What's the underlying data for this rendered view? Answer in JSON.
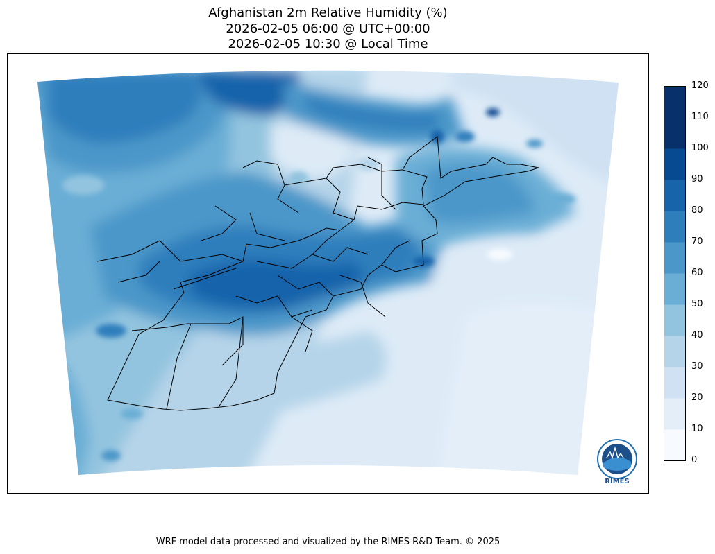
{
  "title": {
    "line1": "Afghanistan 2m Relative Humidity (%)",
    "line2": "2026-02-05 06:00 @ UTC+00:00",
    "line3": "2026-02-05 10:30 @ Local Time"
  },
  "colorbar": {
    "ticks": [
      "0",
      "10",
      "20",
      "30",
      "40",
      "50",
      "60",
      "70",
      "80",
      "90",
      "100",
      "110",
      "120"
    ],
    "colors": [
      "#f7fbff",
      "#e3eef9",
      "#cfe1f2",
      "#b5d4e9",
      "#93c4df",
      "#6aaed6",
      "#4b97c9",
      "#2e7ebc",
      "#1764ab",
      "#084a91",
      "#08306b",
      "#08306b"
    ]
  },
  "logo_text": "RIMES",
  "footer": "WRF model data processed and visualized by the RIMES R&D Team. © 2025"
}
